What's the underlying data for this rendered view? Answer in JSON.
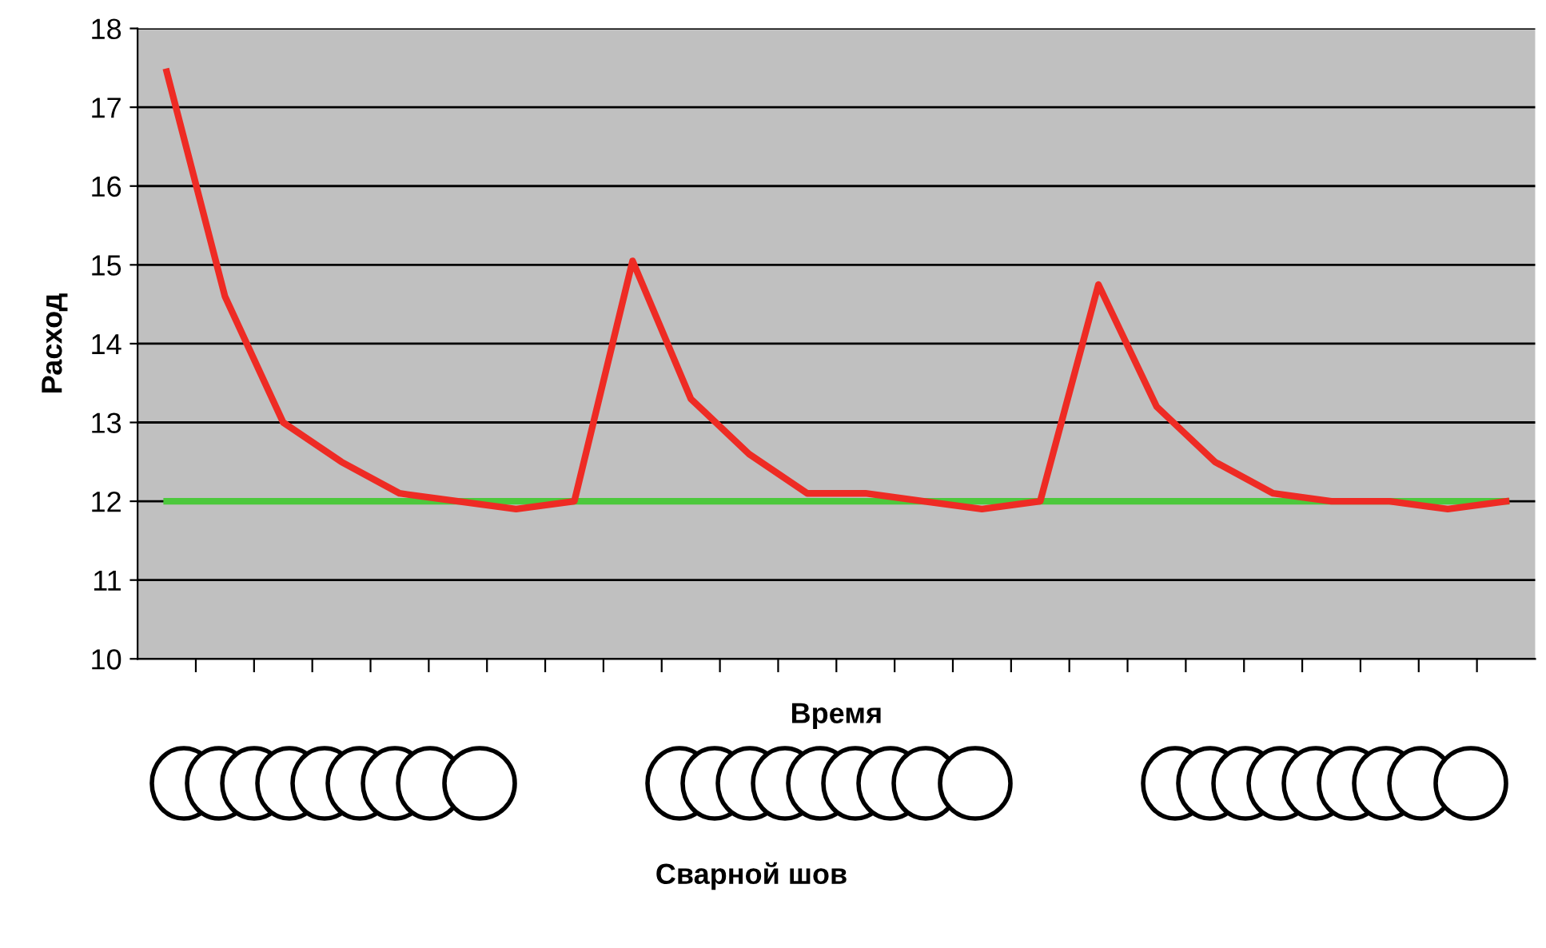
{
  "chart_data": {
    "type": "line",
    "ylabel": "Расход",
    "xlabel": "Время",
    "categories": [
      null,
      null,
      null,
      null,
      null,
      null,
      null,
      null,
      null,
      null,
      null,
      null,
      null,
      null,
      null,
      null,
      null,
      null,
      null,
      null,
      null,
      null,
      null,
      null
    ],
    "series": [
      {
        "color": "#4cc83c",
        "values": [
          12,
          12,
          12,
          12,
          12,
          12,
          12,
          12,
          12,
          12,
          12,
          12,
          12,
          12,
          12,
          12,
          12,
          12,
          12,
          12,
          12,
          12,
          12,
          12
        ]
      },
      {
        "color": "#ee2b24",
        "values": [
          17.45,
          14.6,
          13.0,
          12.5,
          12.1,
          12.0,
          11.9,
          12.0,
          15.05,
          13.3,
          12.6,
          12.1,
          12.1,
          12.0,
          11.9,
          12.0,
          14.75,
          13.2,
          12.5,
          12.1,
          12.0,
          12.0,
          11.9,
          12.0
        ]
      }
    ],
    "ylim": [
      10,
      18
    ],
    "yticks": [
      10,
      11,
      12,
      13,
      14,
      15,
      16,
      17,
      18
    ],
    "grid": "y",
    "marker": "none",
    "line_style": "solid",
    "annotations": [
      "Сварной шов"
    ]
  }
}
